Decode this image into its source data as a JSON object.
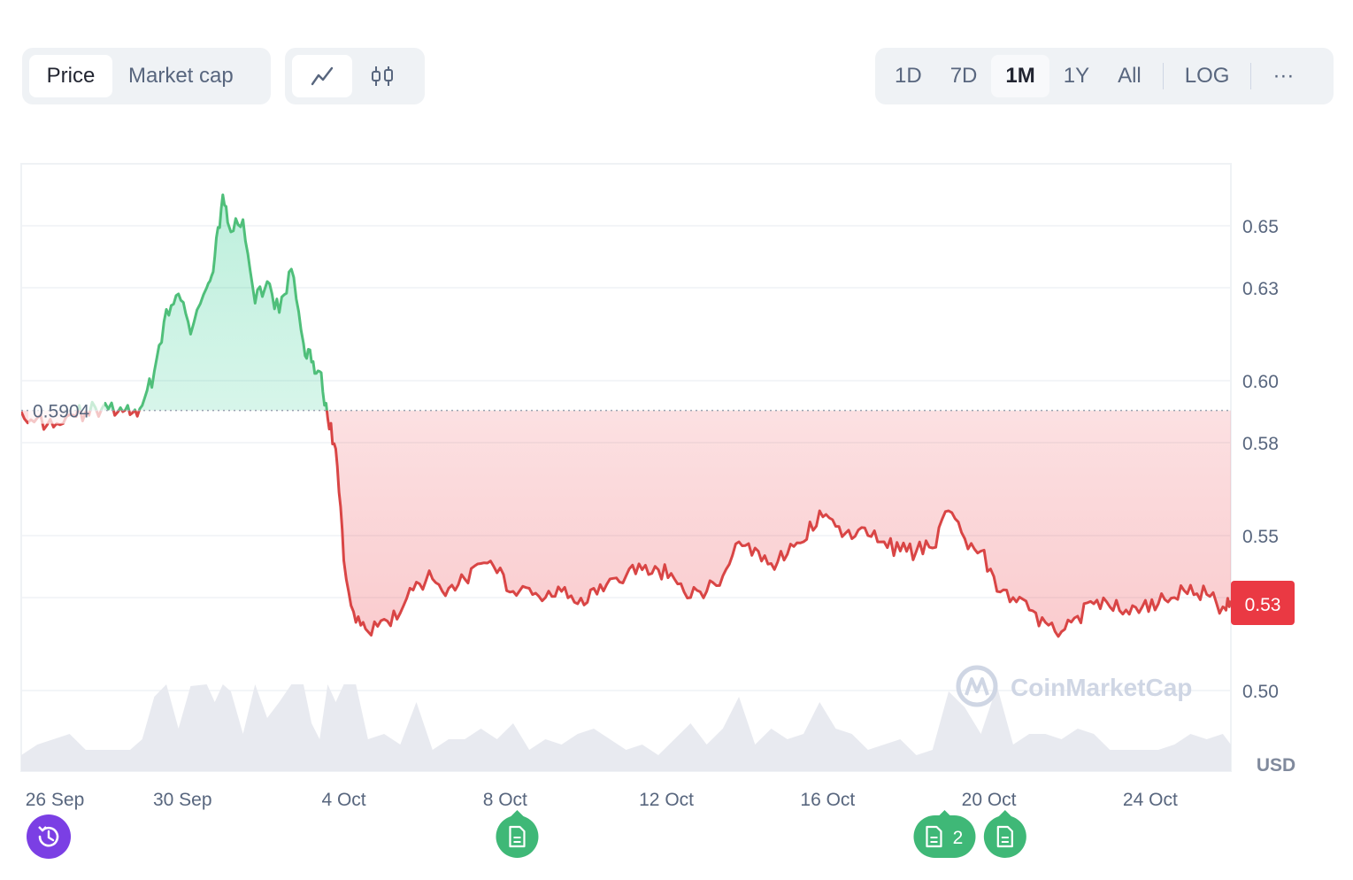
{
  "toolbar": {
    "type_options": [
      "Price",
      "Market cap"
    ],
    "type_selected": "Price",
    "chart_modes": [
      "line-chart-icon",
      "candlestick-icon"
    ],
    "chart_mode_selected": "line-chart-icon",
    "ranges": [
      "1D",
      "7D",
      "1M",
      "1Y",
      "All"
    ],
    "range_selected": "1M",
    "log_label": "LOG",
    "more_label": "···"
  },
  "colors": {
    "up": "#16c784",
    "down": "#ea3943",
    "up_line": "#4fbf7a",
    "down_line": "#d94545",
    "volume": "#e6e8ee",
    "grid": "#eff2f5",
    "history_button": "#7b3fe4",
    "news": "#3fb877"
  },
  "chart_data": {
    "type": "line",
    "baseline": 0.5904,
    "baseline_label": "0.5904",
    "current_price_label": "0.53",
    "currency_label": "USD",
    "watermark": "CoinMarketCap",
    "ylim": [
      0.48,
      0.67
    ],
    "y_ticks": [
      0.5,
      0.53,
      0.55,
      0.58,
      0.6,
      0.63,
      0.65
    ],
    "y_tick_labels": [
      "0.50",
      "0.53",
      "0.55",
      "0.58",
      "0.60",
      "0.63",
      "0.65"
    ],
    "x_tick_labels": [
      "26 Sep",
      "30 Sep",
      "4 Oct",
      "8 Oct",
      "12 Oct",
      "16 Oct",
      "20 Oct",
      "24 Oct"
    ],
    "x_tick_days": [
      0,
      4,
      8,
      12,
      16,
      20,
      24,
      28
    ],
    "x_range_days": [
      0,
      30
    ],
    "price_series": {
      "x": [
        0,
        0.4,
        0.8,
        1.2,
        1.6,
        2.0,
        2.4,
        2.7,
        3.0,
        3.3,
        3.6,
        3.9,
        4.2,
        4.6,
        4.8,
        5.0,
        5.2,
        5.5,
        5.8,
        6.1,
        6.4,
        6.7,
        7.0,
        7.2,
        7.4,
        7.6,
        7.8,
        8.0,
        8.3,
        8.6,
        9.0,
        9.4,
        9.8,
        10.2,
        10.6,
        11.0,
        11.4,
        11.8,
        12.2,
        12.6,
        13.0,
        13.4,
        13.8,
        14.2,
        14.6,
        15.0,
        15.4,
        15.8,
        16.2,
        16.6,
        17.0,
        17.4,
        17.8,
        18.2,
        18.6,
        19.0,
        19.4,
        19.8,
        20.2,
        20.6,
        21.0,
        21.4,
        21.8,
        22.2,
        22.6,
        23.0,
        23.4,
        23.8,
        24.2,
        24.6,
        25.0,
        25.4,
        25.8,
        26.2,
        26.6,
        27.0,
        27.4,
        27.8,
        28.2,
        28.6,
        29.0,
        29.4,
        29.8,
        30.0
      ],
      "y": [
        0.59,
        0.588,
        0.585,
        0.589,
        0.59,
        0.591,
        0.59,
        0.589,
        0.592,
        0.603,
        0.623,
        0.628,
        0.615,
        0.63,
        0.64,
        0.66,
        0.648,
        0.652,
        0.625,
        0.632,
        0.622,
        0.636,
        0.612,
        0.606,
        0.603,
        0.588,
        0.578,
        0.542,
        0.522,
        0.519,
        0.523,
        0.525,
        0.535,
        0.536,
        0.533,
        0.536,
        0.541,
        0.538,
        0.532,
        0.533,
        0.53,
        0.532,
        0.528,
        0.533,
        0.536,
        0.537,
        0.539,
        0.539,
        0.536,
        0.53,
        0.532,
        0.537,
        0.548,
        0.546,
        0.541,
        0.544,
        0.548,
        0.558,
        0.553,
        0.549,
        0.55,
        0.548,
        0.545,
        0.545,
        0.546,
        0.558,
        0.549,
        0.545,
        0.532,
        0.53,
        0.526,
        0.522,
        0.519,
        0.524,
        0.528,
        0.527,
        0.526,
        0.527,
        0.528,
        0.53,
        0.534,
        0.531,
        0.527,
        0.529
      ]
    },
    "news_markers": [
      {
        "day": 12.3,
        "count": ""
      },
      {
        "day": 22.9,
        "count": "2"
      },
      {
        "day": 24.4,
        "count": ""
      }
    ]
  }
}
